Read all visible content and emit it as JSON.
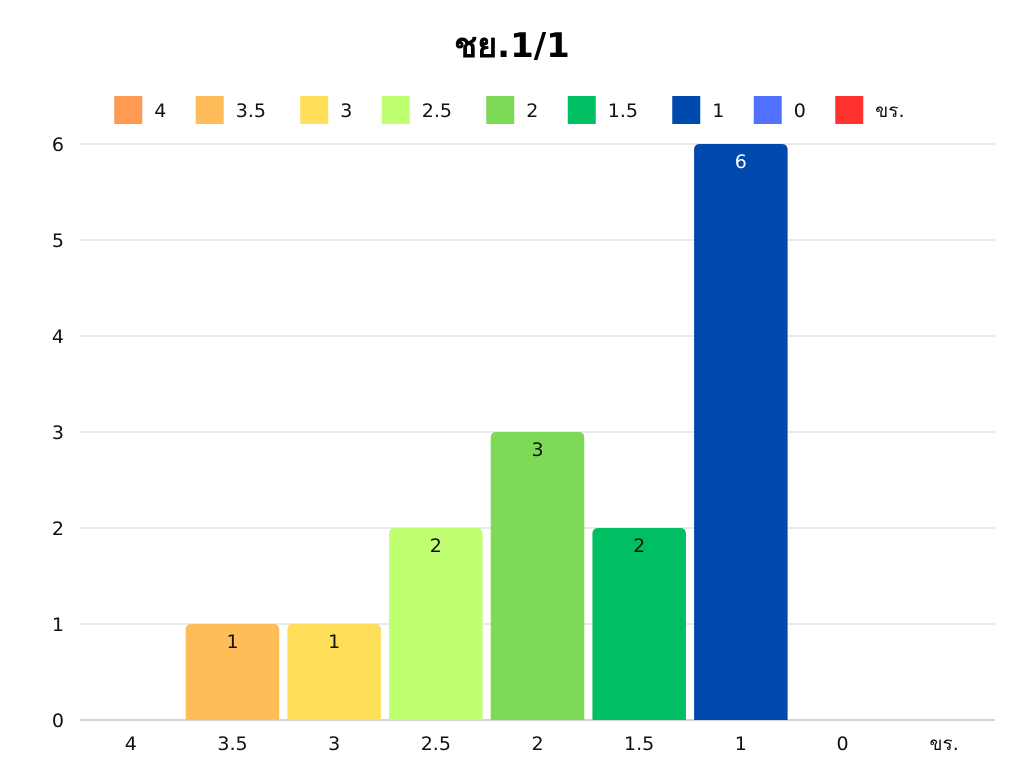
{
  "chart_data": {
    "type": "bar",
    "title": "ชย.1/1",
    "xlabel": "",
    "ylabel": "",
    "categories": [
      "4",
      "3.5",
      "3",
      "2.5",
      "2",
      "1.5",
      "1",
      "0",
      "ขร."
    ],
    "values": [
      0,
      1,
      1,
      2,
      3,
      2,
      6,
      0,
      0
    ],
    "colors": [
      "#ff9a52",
      "#ffbd59",
      "#ffde59",
      "#c1ff72",
      "#7ed957",
      "#00bf63",
      "#004aad",
      "#5271ff",
      "#ff3131"
    ],
    "data_label_colors": [
      "#111111",
      "#111111",
      "#111111",
      "#111111",
      "#111111",
      "#111111",
      "#ffffff",
      "#111111",
      "#111111"
    ],
    "ylim": [
      0,
      6
    ],
    "yticks": [
      0,
      1,
      2,
      3,
      4,
      5,
      6
    ],
    "grid": true,
    "legend": "top"
  }
}
